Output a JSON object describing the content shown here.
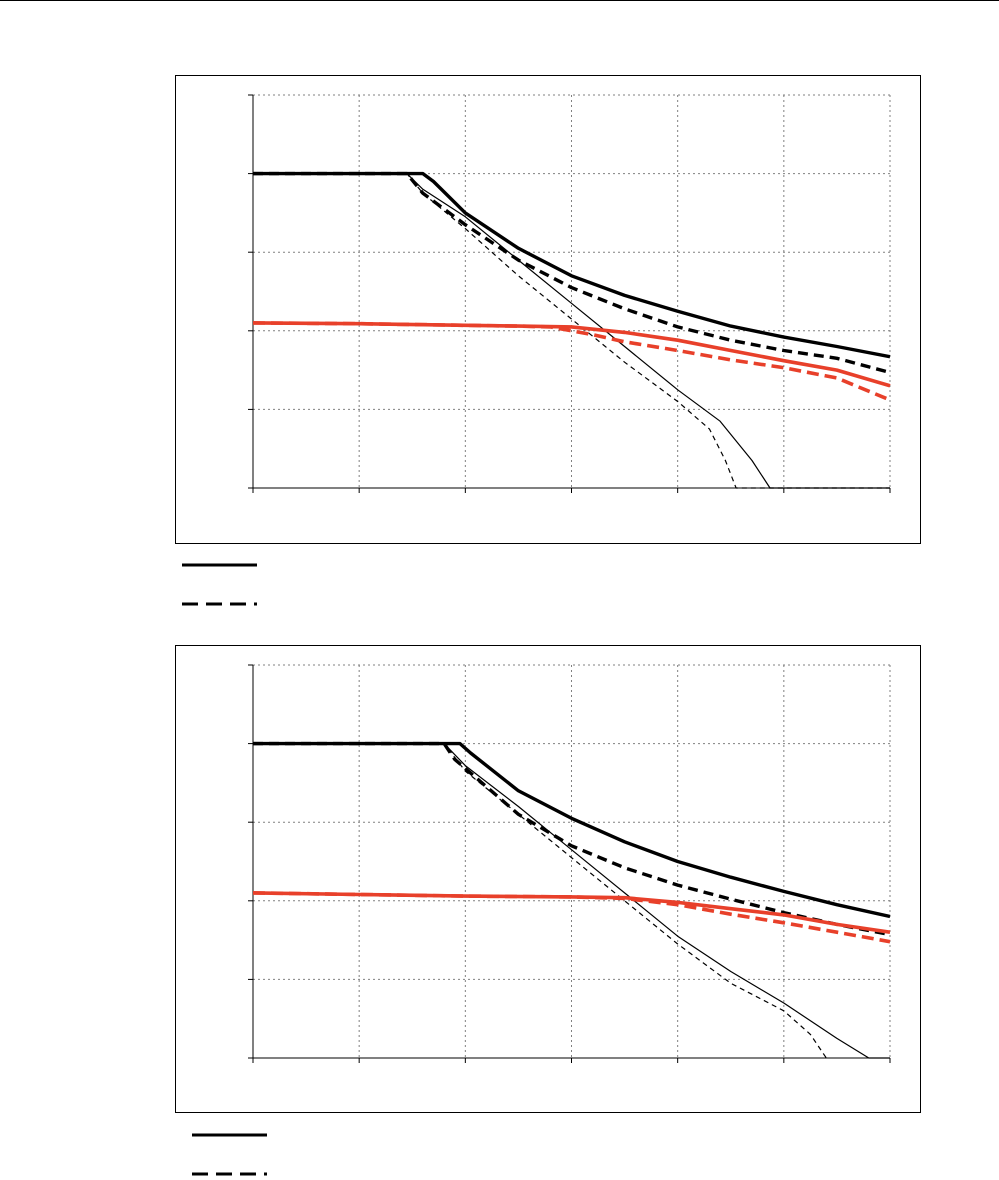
{
  "styles": {
    "black": "#000000",
    "red": "#e8402a",
    "grid": "#808080"
  },
  "chart_data": [
    {
      "type": "line",
      "xlim": [
        0,
        6
      ],
      "ylim": [
        0,
        5
      ],
      "x_gridlines": 6,
      "y_gridlines": 5,
      "grid": "dotted",
      "legend_entries": [
        {
          "style": "solid-black",
          "label": ""
        },
        {
          "style": "dashed-black",
          "label": ""
        }
      ],
      "series": [
        {
          "style": "thick-solid-black",
          "points": [
            [
              0,
              4
            ],
            [
              1.6,
              4
            ],
            [
              1.7,
              3.9
            ],
            [
              2,
              3.5
            ],
            [
              2.5,
              3.05
            ],
            [
              3,
              2.7
            ],
            [
              3.5,
              2.45
            ],
            [
              4,
              2.25
            ],
            [
              4.5,
              2.06
            ],
            [
              5,
              1.92
            ],
            [
              5.5,
              1.8
            ],
            [
              6,
              1.67
            ]
          ]
        },
        {
          "style": "thick-dashed-black",
          "points": [
            [
              0,
              4
            ],
            [
              1.45,
              4
            ],
            [
              1.6,
              3.75
            ],
            [
              2,
              3.35
            ],
            [
              2.5,
              2.9
            ],
            [
              3,
              2.55
            ],
            [
              3.5,
              2.28
            ],
            [
              4,
              2.05
            ],
            [
              4.5,
              1.88
            ],
            [
              5,
              1.75
            ],
            [
              5.5,
              1.65
            ],
            [
              6,
              1.47
            ]
          ]
        },
        {
          "style": "thin-solid-black",
          "points": [
            [
              0,
              4
            ],
            [
              1.45,
              4
            ],
            [
              1.6,
              3.8
            ],
            [
              2,
              3.45
            ],
            [
              2.5,
              2.9
            ],
            [
              3,
              2.35
            ],
            [
              3.5,
              1.8
            ],
            [
              4,
              1.25
            ],
            [
              4.4,
              0.85
            ],
            [
              4.7,
              0.35
            ],
            [
              4.87,
              0
            ],
            [
              6,
              0
            ]
          ]
        },
        {
          "style": "thin-dashed-black",
          "points": [
            [
              0,
              4
            ],
            [
              1.45,
              4
            ],
            [
              1.6,
              3.75
            ],
            [
              2,
              3.3
            ],
            [
              2.5,
              2.7
            ],
            [
              3,
              2.15
            ],
            [
              3.5,
              1.6
            ],
            [
              4,
              1.1
            ],
            [
              4.3,
              0.75
            ],
            [
              4.45,
              0.35
            ],
            [
              4.55,
              0
            ],
            [
              6,
              0
            ]
          ]
        },
        {
          "style": "thick-solid-red",
          "points": [
            [
              0,
              2.1
            ],
            [
              1,
              2.09
            ],
            [
              2,
              2.07
            ],
            [
              2.5,
              2.06
            ],
            [
              3,
              2.05
            ],
            [
              3.5,
              1.98
            ],
            [
              4,
              1.88
            ],
            [
              4.5,
              1.75
            ],
            [
              5,
              1.62
            ],
            [
              5.5,
              1.5
            ],
            [
              6,
              1.3
            ]
          ]
        },
        {
          "style": "thick-dashed-red",
          "points": [
            [
              0,
              2.1
            ],
            [
              1,
              2.09
            ],
            [
              2,
              2.07
            ],
            [
              2.5,
              2.06
            ],
            [
              2.8,
              2.05
            ],
            [
              3.2,
              1.95
            ],
            [
              3.5,
              1.86
            ],
            [
              4,
              1.75
            ],
            [
              4.5,
              1.63
            ],
            [
              5,
              1.53
            ],
            [
              5.5,
              1.4
            ],
            [
              6,
              1.12
            ]
          ]
        }
      ]
    },
    {
      "type": "line",
      "xlim": [
        0,
        6
      ],
      "ylim": [
        0,
        5
      ],
      "x_gridlines": 6,
      "y_gridlines": 5,
      "grid": "dotted",
      "legend_entries": [
        {
          "style": "solid-black",
          "label": ""
        },
        {
          "style": "dashed-black",
          "label": ""
        }
      ],
      "series": [
        {
          "style": "thick-solid-black",
          "points": [
            [
              0,
              4
            ],
            [
              1.95,
              4
            ],
            [
              2.05,
              3.88
            ],
            [
              2.5,
              3.4
            ],
            [
              3,
              3.05
            ],
            [
              3.5,
              2.75
            ],
            [
              4,
              2.5
            ],
            [
              4.5,
              2.3
            ],
            [
              5,
              2.12
            ],
            [
              5.5,
              1.95
            ],
            [
              6,
              1.8
            ]
          ]
        },
        {
          "style": "thick-dashed-black",
          "points": [
            [
              0,
              4
            ],
            [
              1.8,
              4
            ],
            [
              1.9,
              3.8
            ],
            [
              2.5,
              3.1
            ],
            [
              3,
              2.7
            ],
            [
              3.5,
              2.42
            ],
            [
              4,
              2.2
            ],
            [
              4.5,
              2.02
            ],
            [
              5,
              1.85
            ],
            [
              5.5,
              1.7
            ],
            [
              6,
              1.57
            ]
          ]
        },
        {
          "style": "thin-solid-black",
          "points": [
            [
              0,
              4
            ],
            [
              1.8,
              4
            ],
            [
              2,
              3.72
            ],
            [
              2.5,
              3.2
            ],
            [
              3,
              2.65
            ],
            [
              3.5,
              2.1
            ],
            [
              4,
              1.55
            ],
            [
              4.5,
              1.1
            ],
            [
              5,
              0.7
            ],
            [
              5.5,
              0.25
            ],
            [
              5.8,
              0
            ],
            [
              6,
              0
            ]
          ]
        },
        {
          "style": "thin-dashed-black",
          "points": [
            [
              0,
              4
            ],
            [
              1.8,
              4
            ],
            [
              2,
              3.65
            ],
            [
              2.5,
              3.1
            ],
            [
              3,
              2.55
            ],
            [
              3.5,
              2
            ],
            [
              4,
              1.45
            ],
            [
              4.5,
              0.95
            ],
            [
              5,
              0.6
            ],
            [
              5.25,
              0.3
            ],
            [
              5.4,
              0
            ]
          ]
        },
        {
          "style": "thick-solid-red",
          "points": [
            [
              0,
              2.1
            ],
            [
              1,
              2.08
            ],
            [
              2,
              2.06
            ],
            [
              3,
              2.05
            ],
            [
              3.5,
              2.04
            ],
            [
              4,
              1.98
            ],
            [
              4.5,
              1.9
            ],
            [
              5,
              1.82
            ],
            [
              5.5,
              1.7
            ],
            [
              6,
              1.6
            ]
          ]
        },
        {
          "style": "thick-dashed-red",
          "points": [
            [
              0,
              2.1
            ],
            [
              1,
              2.08
            ],
            [
              2,
              2.06
            ],
            [
              3,
              2.05
            ],
            [
              3.5,
              2.03
            ],
            [
              4,
              1.95
            ],
            [
              4.5,
              1.83
            ],
            [
              5,
              1.72
            ],
            [
              5.5,
              1.6
            ],
            [
              6,
              1.48
            ]
          ]
        }
      ]
    }
  ]
}
